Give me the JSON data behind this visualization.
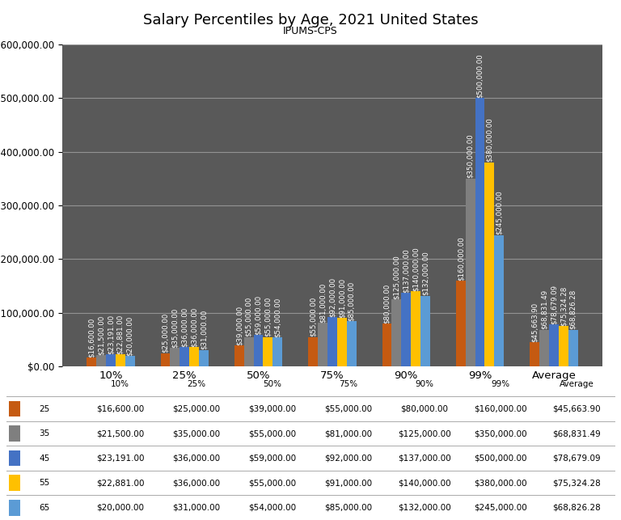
{
  "title": "Salary Percentiles by Age, 2021 United States",
  "subtitle": "IPUMS-CPS",
  "categories": [
    "10%",
    "25%",
    "50%",
    "75%",
    "90%",
    "99%",
    "Average"
  ],
  "series": [
    {
      "label": "25",
      "color": "#C55A11",
      "values": [
        16600,
        25000,
        39000,
        55000,
        80000,
        160000,
        45663.9
      ]
    },
    {
      "label": "35",
      "color": "#7F7F7F",
      "values": [
        21500,
        35000,
        55000,
        81000,
        125000,
        350000,
        68831.49
      ]
    },
    {
      "label": "45",
      "color": "#4472C4",
      "values": [
        23191,
        36000,
        59000,
        92000,
        137000,
        500000,
        78679.09
      ]
    },
    {
      "label": "55",
      "color": "#FFC000",
      "values": [
        22881,
        36000,
        55000,
        91000,
        140000,
        380000,
        75324.28
      ]
    },
    {
      "label": "65",
      "color": "#5B9BD5",
      "values": [
        20000,
        31000,
        54000,
        85000,
        132000,
        245000,
        68826.28
      ]
    }
  ],
  "ylim": [
    0,
    600000
  ],
  "yticks": [
    0,
    100000,
    200000,
    300000,
    400000,
    500000,
    600000
  ],
  "plot_bg_color": "#595959",
  "figure_bg_color": "#FFFFFF",
  "title_fontsize": 13,
  "subtitle_fontsize": 9,
  "label_fontsize": 6.2,
  "bar_width": 0.13,
  "grid_color": "#FFFFFF",
  "grid_alpha": 0.35,
  "text_color": "#FFFFFF",
  "tick_label_color": "#000000",
  "table_fontsize": 7.5
}
